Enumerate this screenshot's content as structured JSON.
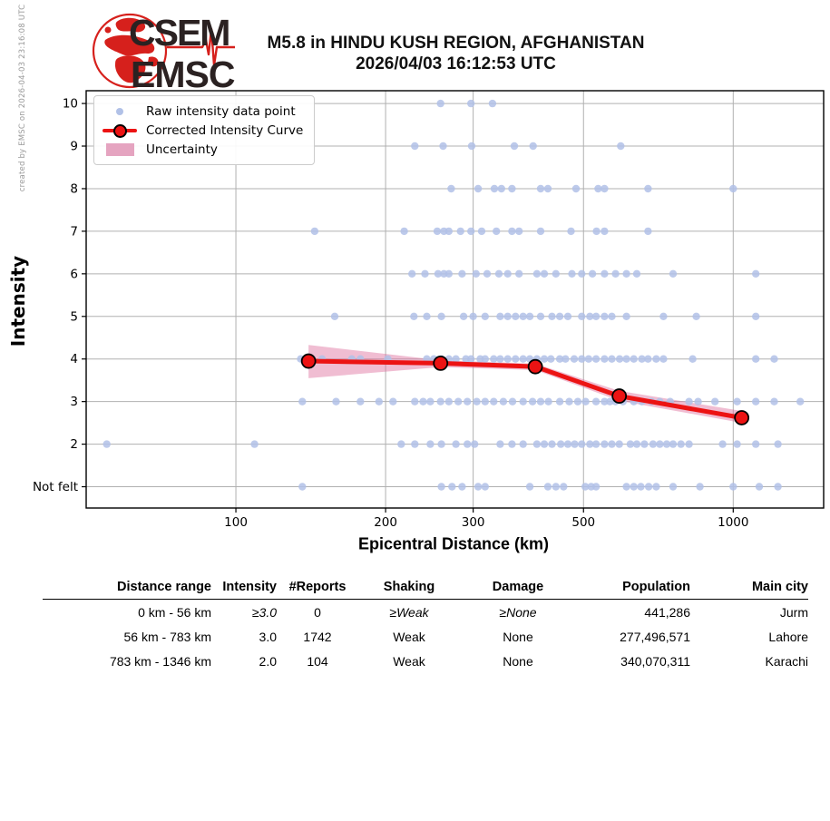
{
  "meta": {
    "created_by": "created by EMSC on 2026-04-03 23:16:08 UTC"
  },
  "logo": {
    "line1": "CSEM",
    "line2": "EMSC"
  },
  "header": {
    "title_line1": "M5.8 in HINDU KUSH REGION, AFGHANISTAN",
    "title_line2": "2026/04/03 16:12:53 UTC"
  },
  "chart_data": {
    "type": "scatter",
    "xlabel": "Epicentral Distance (km)",
    "ylabel": "Intensity",
    "x_scale": "log",
    "x_range_km": [
      50,
      1520
    ],
    "x_ticks_km": [
      100,
      200,
      300,
      500,
      1000
    ],
    "y_range": [
      0.5,
      10.3
    ],
    "y_ticks": [
      {
        "value": 10,
        "label": "10"
      },
      {
        "value": 9,
        "label": "9"
      },
      {
        "value": 8,
        "label": "8"
      },
      {
        "value": 7,
        "label": "7"
      },
      {
        "value": 6,
        "label": "6"
      },
      {
        "value": 5,
        "label": "5"
      },
      {
        "value": 4,
        "label": "4"
      },
      {
        "value": 3,
        "label": "3"
      },
      {
        "value": 2,
        "label": "2"
      },
      {
        "value": 1,
        "label": "Not felt"
      }
    ],
    "legend": [
      "Raw intensity data point",
      "Corrected Intensity Curve",
      "Uncertainty"
    ],
    "raw_points": [
      {
        "intensity": 10,
        "distances_km": [
          258,
          297,
          328
        ]
      },
      {
        "intensity": 9,
        "distances_km": [
          229,
          261,
          298,
          363,
          396,
          594
        ]
      },
      {
        "intensity": 8,
        "distances_km": [
          271,
          307,
          331,
          342,
          359,
          410,
          424,
          483,
          535,
          551,
          674,
          1000
        ]
      },
      {
        "intensity": 7,
        "distances_km": [
          144,
          218,
          254,
          262,
          268,
          283,
          297,
          312,
          334,
          359,
          371,
          410,
          472,
          531,
          551,
          674
        ]
      },
      {
        "intensity": 6,
        "distances_km": [
          226,
          240,
          255,
          262,
          268,
          285,
          304,
          320,
          338,
          352,
          371,
          403,
          417,
          440,
          474,
          496,
          521,
          551,
          580,
          610,
          640,
          757,
          1110
        ]
      },
      {
        "intensity": 5,
        "distances_km": [
          158,
          228,
          242,
          259,
          287,
          300,
          317,
          340,
          352,
          365,
          378,
          390,
          410,
          432,
          448,
          465,
          496,
          515,
          530,
          551,
          570,
          610,
          724,
          843,
          1110
        ]
      },
      {
        "intensity": 4,
        "distances_km": [
          135,
          140,
          149,
          171,
          178,
          202,
          242,
          250,
          259,
          268,
          277,
          290,
          297,
          310,
          317,
          330,
          340,
          352,
          365,
          378,
          390,
          403,
          417,
          430,
          448,
          460,
          479,
          496,
          512,
          530,
          551,
          570,
          591,
          610,
          631,
          655,
          674,
          700,
          724,
          829,
          1110,
          1209
        ]
      },
      {
        "intensity": 3,
        "distances_km": [
          136,
          159,
          178,
          194,
          207,
          229,
          238,
          246,
          258,
          268,
          280,
          292,
          305,
          317,
          330,
          345,
          360,
          378,
          395,
          410,
          425,
          448,
          468,
          487,
          505,
          530,
          551,
          565,
          580,
          600,
          631,
          655,
          685,
          712,
          747,
          815,
          850,
          919,
          1018,
          1110,
          1209,
          1364
        ]
      },
      {
        "intensity": 2,
        "distances_km": [
          55,
          109,
          215,
          229,
          246,
          259,
          277,
          292,
          302,
          340,
          359,
          378,
          403,
          417,
          432,
          450,
          465,
          480,
          496,
          515,
          530,
          551,
          570,
          590,
          621,
          640,
          663,
          690,
          712,
          735,
          757,
          785,
          815,
          952,
          1018,
          1110,
          1230
        ]
      },
      {
        "intensity": 1,
        "distances_km": [
          136,
          259,
          272,
          285,
          307,
          317,
          390,
          424,
          440,
          456,
          504,
          518,
          530,
          610,
          631,
          652,
          676,
          700,
          757,
          857,
          1000,
          1128,
          1230
        ]
      }
    ],
    "corrected_curve": {
      "distances_km": [
        140,
        258,
        400,
        590,
        1040
      ],
      "intensities": [
        3.95,
        3.9,
        3.82,
        3.13,
        2.62
      ]
    },
    "uncertainty_band": {
      "distances_km": [
        140,
        258,
        400,
        590,
        1040
      ],
      "upper": [
        4.33,
        3.97,
        3.89,
        3.25,
        2.78
      ],
      "lower": [
        3.55,
        3.81,
        3.74,
        3.02,
        2.5
      ]
    },
    "colors": {
      "raw_point": "#b1c1e7",
      "curve": "#ec1313",
      "band": "#dd6d9b",
      "grid": "#b0b0b0",
      "frame": "#000000"
    }
  },
  "table": {
    "headers": [
      "Distance range",
      "Intensity",
      "#Reports",
      "Shaking",
      "Damage",
      "Population",
      "Main city"
    ],
    "rows": [
      {
        "cells": [
          "0 km -  56 km",
          "≥3.0",
          "0",
          "≥Weak",
          "≥None",
          "441,286",
          "Jurm"
        ]
      },
      {
        "cells": [
          "56 km -  783 km",
          "3.0",
          "1742",
          "Weak",
          "None",
          "277,496,571",
          "Lahore"
        ]
      },
      {
        "cells": [
          "783 km - 1346 km",
          "2.0",
          "104",
          "Weak",
          "None",
          "340,070,311",
          "Karachi"
        ]
      }
    ]
  },
  "colors": {
    "logo_red": "#d6201c",
    "logo_text": "#2b2222",
    "created_by_gray": "#9a9a9a"
  }
}
